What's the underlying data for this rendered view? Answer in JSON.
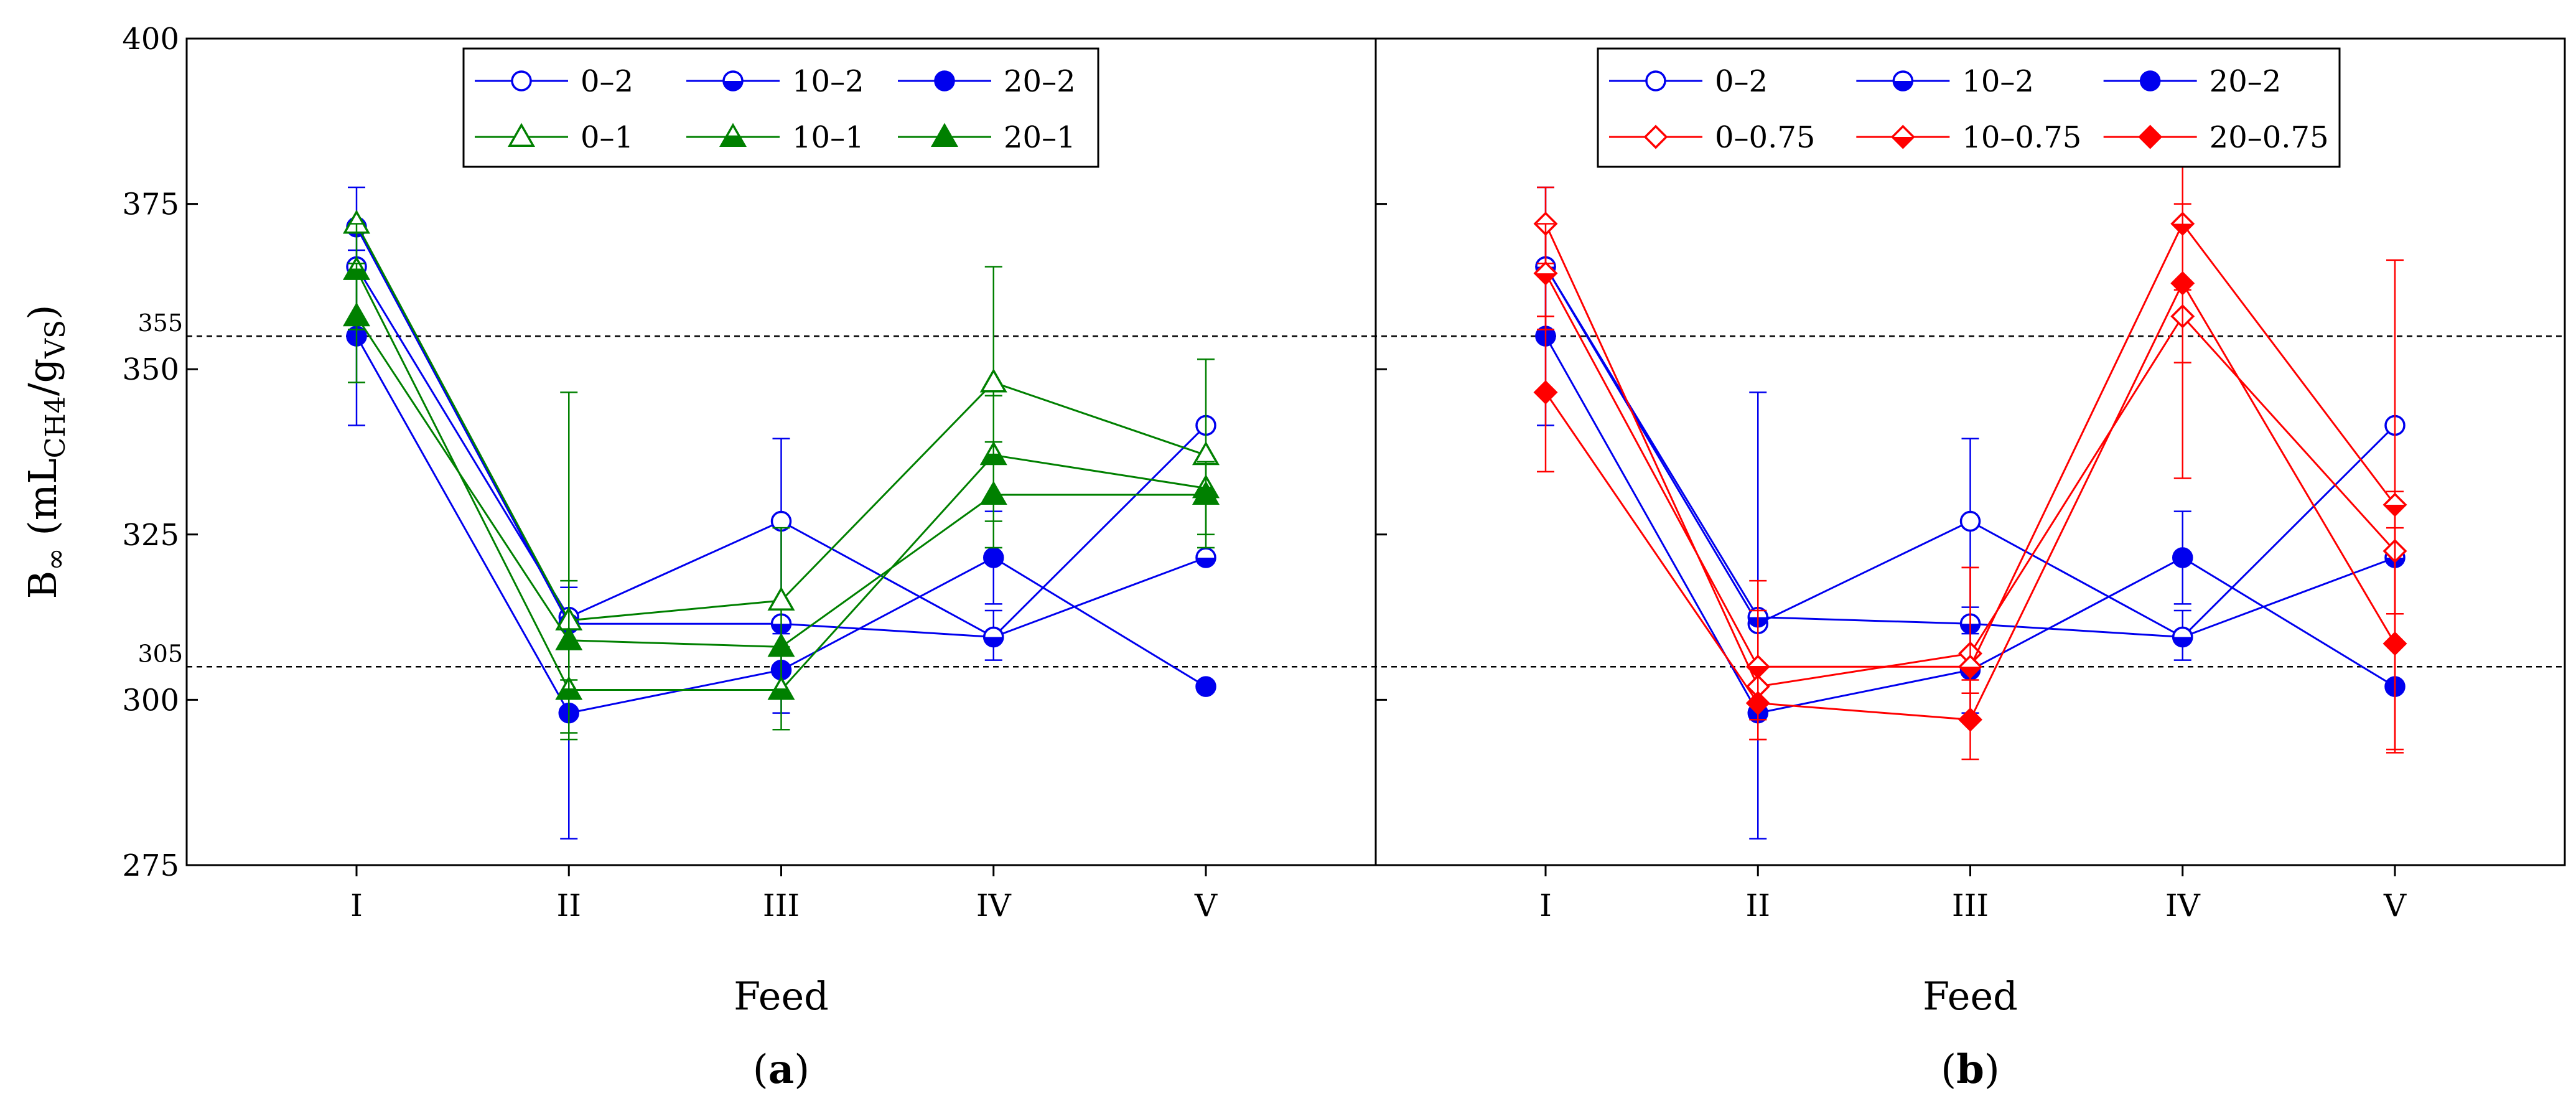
{
  "chart_data": {
    "type": "line",
    "categories": [
      "I",
      "II",
      "III",
      "IV",
      "V"
    ],
    "ylim": [
      275,
      400
    ],
    "yticks": [
      275,
      300,
      325,
      350,
      375,
      400
    ],
    "ylabel_main": "B",
    "ylabel_inf": "∞",
    "ylabel_open": " (mL",
    "ylabel_sub1": "CH4",
    "ylabel_slash": "/g",
    "ylabel_sub2": "VS",
    "ylabel_close": ")",
    "reference_lines": [
      {
        "value": 355,
        "label": "355"
      },
      {
        "value": 305,
        "label": "305"
      }
    ],
    "colors": {
      "blue": "#0000ee",
      "green": "#008000",
      "red": "#ff0000"
    },
    "panels": [
      {
        "id": "a",
        "panel_label": "a",
        "xlabel": "Feed",
        "series": [
          {
            "name": "0–2",
            "color": "#0000ee",
            "marker": "circle-open",
            "values": [
              365.5,
              312.5,
              327,
              309.5,
              341.5
            ],
            "errors": [
              [
                null,
                null
              ],
              [
                null,
                null
              ],
              [
                314,
                339.5
              ],
              [
                null,
                null
              ],
              [
                null,
                null
              ]
            ]
          },
          {
            "name": "10–2",
            "color": "#0000ee",
            "marker": "circle-half",
            "values": [
              371.5,
              311.5,
              311.5,
              309.5,
              321.5
            ],
            "errors": [
              [
                366,
                377.5
              ],
              [
                null,
                null
              ],
              [
                null,
                null
              ],
              [
                306,
                313.5
              ],
              [
                null,
                null
              ]
            ]
          },
          {
            "name": "20–2",
            "color": "#0000ee",
            "marker": "circle-filled",
            "values": [
              355,
              298,
              304.5,
              321.5,
              302
            ],
            "errors": [
              [
                341.5,
                368
              ],
              [
                279,
                317
              ],
              [
                298,
                310
              ],
              [
                314.5,
                328.5
              ],
              [
                null,
                null
              ]
            ]
          },
          {
            "name": "0–1",
            "color": "#008000",
            "marker": "triangle-open",
            "values": [
              372,
              312,
              315,
              348,
              337
            ],
            "errors": [
              [
                null,
                null
              ],
              [
                303,
                318
              ],
              [
                301,
                326
              ],
              [
                330,
                365.5
              ],
              [
                323,
                351.5
              ]
            ]
          },
          {
            "name": "10–1",
            "color": "#008000",
            "marker": "triangle-half",
            "values": [
              365,
              301.5,
              301.5,
              337,
              332
            ],
            "errors": [
              [
                356,
                372
              ],
              [
                295,
                308
              ],
              [
                295.5,
                308
              ],
              [
                327,
                346
              ],
              [
                null,
                null
              ]
            ]
          },
          {
            "name": "20–1",
            "color": "#008000",
            "marker": "triangle-filled",
            "values": [
              358,
              309,
              308,
              331,
              331
            ],
            "errors": [
              [
                348,
                366
              ],
              [
                294,
                346.5
              ],
              [
                null,
                null
              ],
              [
                323,
                339
              ],
              [
                325,
                336
              ]
            ]
          }
        ],
        "legend_rows": [
          [
            0,
            1,
            2
          ],
          [
            3,
            4,
            5
          ]
        ]
      },
      {
        "id": "b",
        "panel_label": "b",
        "xlabel": "Feed",
        "series": [
          {
            "name": "0–2",
            "color": "#0000ee",
            "marker": "circle-open",
            "values": [
              365.5,
              311.5,
              327,
              309.5,
              341.5
            ],
            "errors": [
              [
                null,
                null
              ],
              [
                null,
                null
              ],
              [
                314,
                339.5
              ],
              [
                null,
                null
              ],
              [
                null,
                null
              ]
            ]
          },
          {
            "name": "10–2",
            "color": "#0000ee",
            "marker": "circle-half",
            "values": [
              365.5,
              312.5,
              311.5,
              309.5,
              321.5
            ],
            "errors": [
              [
                358,
                372
              ],
              [
                null,
                null
              ],
              [
                null,
                null
              ],
              [
                306,
                313.5
              ],
              [
                null,
                null
              ]
            ]
          },
          {
            "name": "20–2",
            "color": "#0000ee",
            "marker": "circle-filled",
            "values": [
              355,
              298,
              304.5,
              321.5,
              302
            ],
            "errors": [
              [
                341.5,
                377.5
              ],
              [
                279,
                346.5
              ],
              [
                298,
                310
              ],
              [
                314.5,
                328.5
              ],
              [
                null,
                null
              ]
            ]
          },
          {
            "name": "0–0.75",
            "color": "#ff0000",
            "marker": "diamond-open",
            "values": [
              372,
              302,
              307,
              358,
              322.5
            ],
            "errors": [
              [
                366,
                377.5
              ],
              [
                294,
                318
              ],
              [
                301,
                320
              ],
              [
                333.5,
                382
              ],
              [
                313,
                331.5
              ]
            ]
          },
          {
            "name": "10–0.75",
            "color": "#ff0000",
            "marker": "diamond-half",
            "values": [
              364.5,
              305,
              305,
              372,
              329.5
            ],
            "errors": [
              [
                356,
                372
              ],
              [
                297,
                313.5
              ],
              [
                297,
                320
              ],
              [
                362,
                382
              ],
              [
                292.5,
                366.5
              ]
            ]
          },
          {
            "name": "20–0.75",
            "color": "#ff0000",
            "marker": "diamond-filled",
            "values": [
              346.5,
              299.5,
              297,
              363,
              308.5
            ],
            "errors": [
              [
                334.5,
                358
              ],
              [
                294,
                305
              ],
              [
                291,
                303
              ],
              [
                351,
                375
              ],
              [
                292,
                326
              ]
            ]
          }
        ],
        "legend_rows": [
          [
            0,
            1,
            2
          ],
          [
            3,
            4,
            5
          ]
        ]
      }
    ]
  }
}
